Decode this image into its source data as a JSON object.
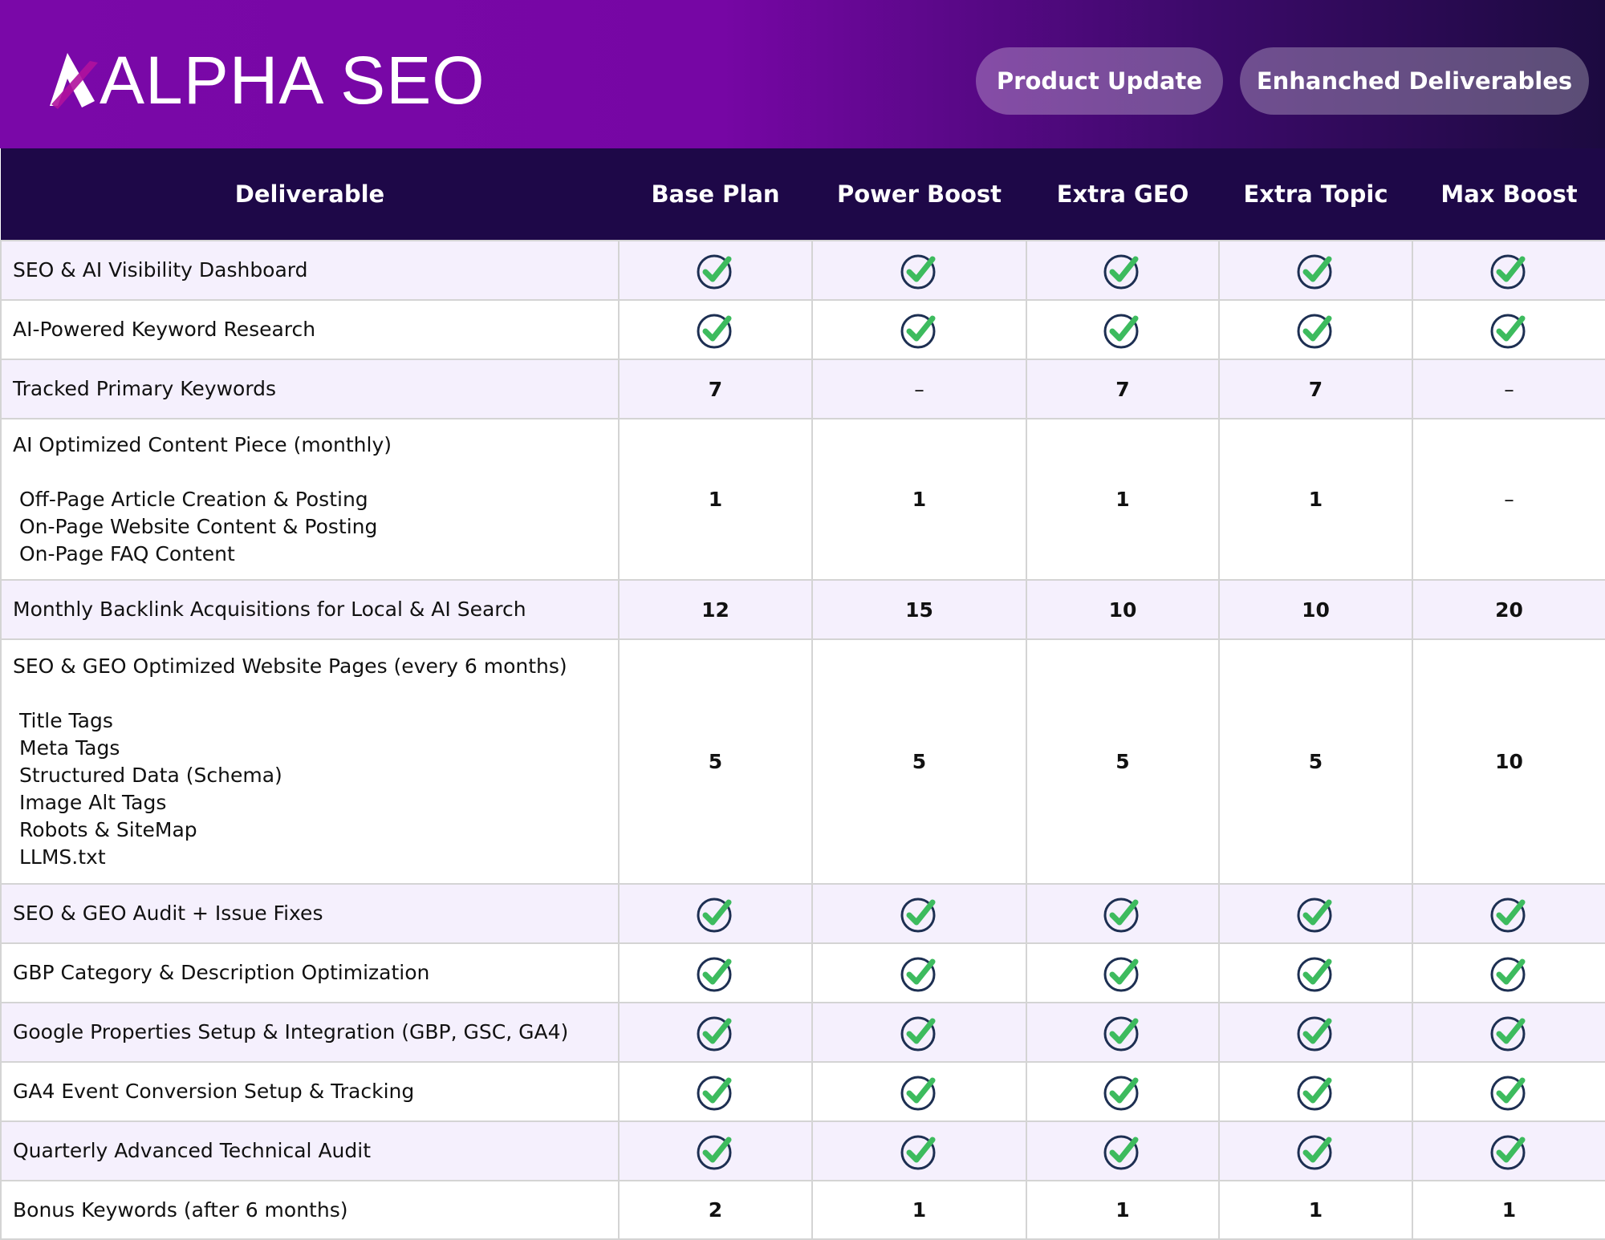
{
  "header": {
    "logo_text": "ALPHA SEO",
    "buttons": [
      "Product Update",
      "Enhanched Deliverables"
    ]
  },
  "columns": [
    "Deliverable",
    "Base Plan",
    "Power Boost",
    "Extra GEO",
    "Extra Topic",
    "Max Boost"
  ],
  "rows": [
    {
      "label": "SEO & AI Visibility Dashboard",
      "sub": [],
      "values": [
        "check",
        "check",
        "check",
        "check",
        "check"
      ]
    },
    {
      "label": "AI-Powered Keyword Research",
      "sub": [],
      "values": [
        "check",
        "check",
        "check",
        "check",
        "check"
      ]
    },
    {
      "label": "Tracked Primary Keywords",
      "sub": [],
      "values": [
        "7",
        "–",
        "7",
        "7",
        "–"
      ]
    },
    {
      "label": "AI Optimized Content Piece (monthly)",
      "sub": [
        "Off-Page Article Creation & Posting",
        "On-Page Website Content & Posting",
        "On-Page FAQ Content"
      ],
      "values": [
        "1",
        "1",
        "1",
        "1",
        "–"
      ]
    },
    {
      "label": "Monthly Backlink Acquisitions for Local & AI Search",
      "sub": [],
      "values": [
        "12",
        "15",
        "10",
        "10",
        "20"
      ]
    },
    {
      "label": "SEO & GEO Optimized Website Pages (every 6 months)",
      "sub": [
        "Title Tags",
        "Meta Tags",
        "Structured Data (Schema)",
        "Image Alt Tags",
        "Robots & SiteMap",
        "LLMS.txt"
      ],
      "values": [
        "5",
        "5",
        "5",
        "5",
        "10"
      ]
    },
    {
      "label": "SEO & GEO Audit + Issue Fixes",
      "sub": [],
      "values": [
        "check",
        "check",
        "check",
        "check",
        "check"
      ]
    },
    {
      "label": "GBP Category & Description Optimization",
      "sub": [],
      "values": [
        "check",
        "check",
        "check",
        "check",
        "check"
      ]
    },
    {
      "label": "Google Properties Setup & Integration (GBP, GSC, GA4)",
      "sub": [],
      "values": [
        "check",
        "check",
        "check",
        "check",
        "check"
      ]
    },
    {
      "label": "GA4 Event Conversion Setup & Tracking",
      "sub": [],
      "values": [
        "check",
        "check",
        "check",
        "check",
        "check"
      ]
    },
    {
      "label": "Quarterly Advanced Technical Audit",
      "sub": [],
      "values": [
        "check",
        "check",
        "check",
        "check",
        "check"
      ]
    },
    {
      "label": "Bonus Keywords (after 6 months)",
      "sub": [],
      "values": [
        "2",
        "1",
        "1",
        "1",
        "1"
      ]
    }
  ],
  "colors": {
    "check": "#3dbb5e",
    "circle": "#1d2f52",
    "header": "#1e0848",
    "alt_row": "#f5f0fd"
  }
}
